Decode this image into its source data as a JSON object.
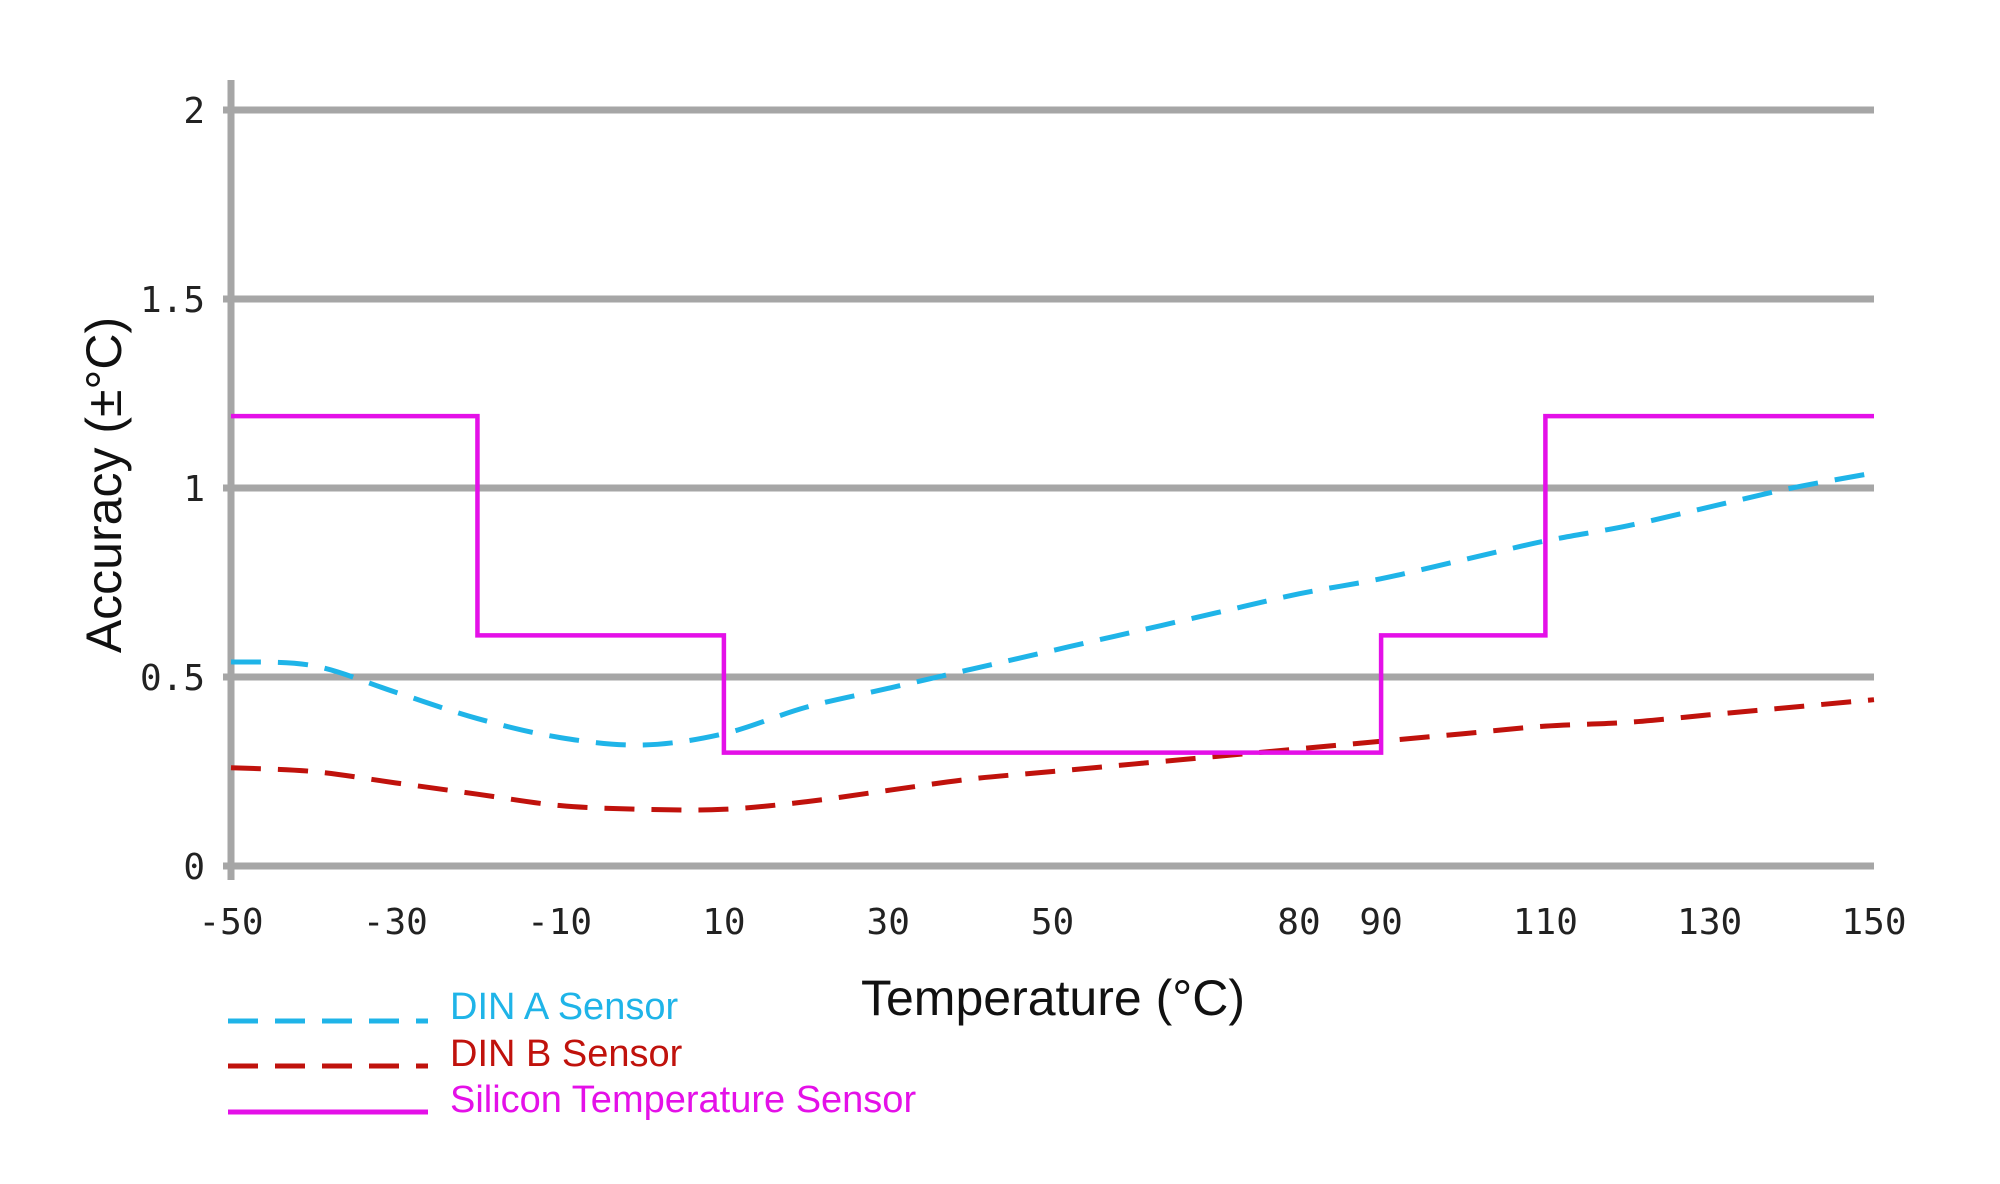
{
  "chart_data": {
    "type": "line",
    "title": "",
    "xlabel": "Temperature (°C)",
    "ylabel": "Accuracy (±°C)",
    "xlim": [
      -50,
      150
    ],
    "ylim": [
      0,
      2
    ],
    "grid": "horizontal",
    "legend_position": "bottom-left",
    "x_ticks": [
      -50,
      -30,
      -10,
      10,
      30,
      50,
      80,
      90,
      110,
      130,
      150
    ],
    "x_tick_labels": [
      "-50",
      "-30",
      "-10",
      "10",
      "30",
      "50",
      "80",
      "90",
      "110",
      "130",
      "150"
    ],
    "y_ticks": [
      0,
      0.5,
      1,
      1.5,
      2
    ],
    "y_tick_labels": [
      "0",
      "0.5",
      "1",
      "1.5",
      "2"
    ],
    "series": [
      {
        "name": "DIN A Sensor",
        "style": "dashed",
        "color": "#1fb4e8",
        "x": [
          -50,
          -40,
          -30,
          -20,
          -10,
          0,
          10,
          20,
          30,
          40,
          50,
          60,
          70,
          80,
          90,
          100,
          110,
          120,
          130,
          140,
          150
        ],
        "y": [
          0.54,
          0.53,
          0.46,
          0.39,
          0.34,
          0.32,
          0.35,
          0.42,
          0.47,
          0.52,
          0.57,
          0.62,
          0.67,
          0.72,
          0.76,
          0.81,
          0.86,
          0.9,
          0.95,
          1.0,
          1.04
        ]
      },
      {
        "name": "DIN B Sensor",
        "style": "dashed",
        "color": "#c0120c",
        "x": [
          -50,
          -40,
          -30,
          -20,
          -10,
          0,
          10,
          20,
          30,
          40,
          50,
          60,
          70,
          80,
          90,
          100,
          110,
          120,
          130,
          140,
          150
        ],
        "y": [
          0.26,
          0.25,
          0.22,
          0.19,
          0.16,
          0.15,
          0.15,
          0.17,
          0.2,
          0.23,
          0.25,
          0.27,
          0.29,
          0.31,
          0.33,
          0.35,
          0.37,
          0.38,
          0.4,
          0.42,
          0.44
        ]
      },
      {
        "name": "Silicon Temperature Sensor",
        "style": "solid",
        "color": "#e410e8",
        "x": [
          -50,
          -20,
          -20,
          10,
          10,
          90,
          90,
          110,
          110,
          150
        ],
        "y": [
          1.19,
          1.19,
          0.61,
          0.61,
          0.3,
          0.3,
          0.61,
          0.61,
          1.19,
          1.19
        ]
      }
    ]
  }
}
